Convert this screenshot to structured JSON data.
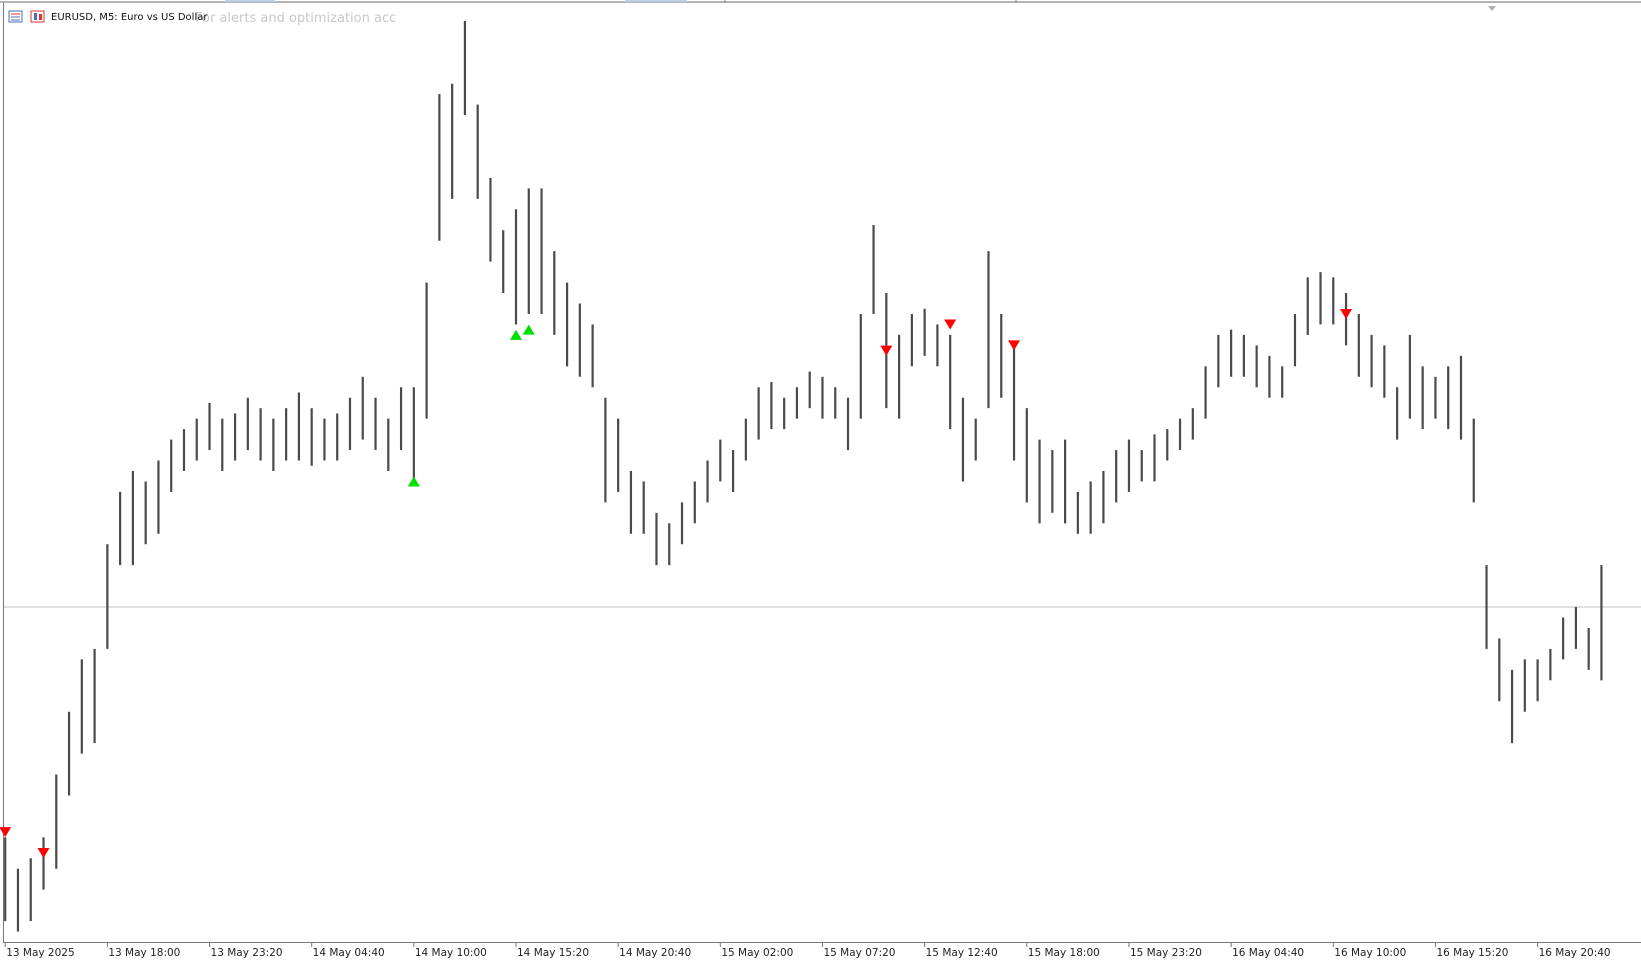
{
  "chart_data": {
    "type": "range",
    "title": "EURUSD, M5: Euro vs US Dollar",
    "subtitle": "For alerts and optimization acc",
    "color": "#4a4a4a",
    "ylim": [
      1.1089,
      1.1268
    ],
    "current_price": 1.1153,
    "categories": [
      "13 May 2025",
      null,
      null,
      null,
      null,
      null,
      null,
      null,
      "13 May 18:00",
      null,
      null,
      null,
      null,
      null,
      null,
      null,
      "13 May 23:20",
      null,
      null,
      null,
      null,
      null,
      null,
      null,
      "14 May 04:40",
      null,
      null,
      null,
      null,
      null,
      null,
      null,
      "14 May 10:00",
      null,
      null,
      null,
      null,
      null,
      null,
      null,
      "14 May 15:20",
      null,
      null,
      null,
      null,
      null,
      null,
      null,
      "14 May 20:40",
      null,
      null,
      null,
      null,
      null,
      null,
      null,
      "15 May 02:00",
      null,
      null,
      null,
      null,
      null,
      null,
      null,
      "15 May 07:20",
      null,
      null,
      null,
      null,
      null,
      null,
      null,
      "15 May 12:40",
      null,
      null,
      null,
      null,
      null,
      null,
      null,
      "15 May 18:00",
      null,
      null,
      null,
      null,
      null,
      null,
      null,
      "15 May 23:20",
      null,
      null,
      null,
      null,
      null,
      null,
      null,
      "16 May 04:40",
      null,
      null,
      null,
      null,
      null,
      null,
      null,
      "16 May 10:00",
      null,
      null,
      null,
      null,
      null,
      null,
      null,
      "16 May 15:20",
      null,
      null,
      null,
      null,
      null,
      null,
      null,
      "16 May 20:40",
      null,
      null,
      null,
      null,
      null
    ],
    "high": [
      1.1109,
      1.1103,
      1.1105,
      1.1109,
      1.1121,
      1.1133,
      1.1143,
      1.1145,
      1.1165,
      1.1175,
      1.1179,
      1.1177,
      1.1181,
      1.1185,
      1.1187,
      1.1189,
      1.1192,
      1.1189,
      1.119,
      1.1193,
      1.1191,
      1.1189,
      1.1191,
      1.1194,
      1.1191,
      1.1189,
      1.119,
      1.1193,
      1.1197,
      1.1193,
      1.1189,
      1.1195,
      1.1195,
      1.1215,
      1.1251,
      1.1253,
      1.1265,
      1.1249,
      1.1235,
      1.1225,
      1.1229,
      1.1233,
      1.1233,
      1.1221,
      1.1215,
      1.1211,
      1.1207,
      1.1193,
      1.1189,
      1.1179,
      1.1177,
      1.1171,
      1.1169,
      1.1173,
      1.1177,
      1.1181,
      1.1185,
      1.1183,
      1.1189,
      1.1195,
      1.1196,
      1.1193,
      1.1195,
      1.1198,
      1.1197,
      1.1195,
      1.1193,
      1.1209,
      1.1226,
      1.1213,
      1.1205,
      1.1209,
      1.121,
      1.1207,
      1.1205,
      1.1193,
      1.1189,
      1.1221,
      1.1209,
      1.1203,
      1.1191,
      1.1185,
      1.1183,
      1.1185,
      1.1175,
      1.1177,
      1.1179,
      1.1183,
      1.1185,
      1.1183,
      1.1186,
      1.1187,
      1.1189,
      1.1191,
      1.1199,
      1.1205,
      1.1206,
      1.1205,
      1.1203,
      1.1201,
      1.1199,
      1.1209,
      1.1216,
      1.1217,
      1.1216,
      1.1213,
      1.1209,
      1.1205,
      1.1203,
      1.1195,
      1.1205,
      1.1199,
      1.1197,
      1.1199,
      1.1201,
      1.1189,
      1.1161,
      1.1147,
      1.1141,
      1.1143,
      1.1143,
      1.1145,
      1.1151,
      1.1153,
      1.1149,
      1.1161
    ],
    "low": [
      1.1093,
      1.1091,
      1.1093,
      1.1099,
      1.1103,
      1.1117,
      1.1125,
      1.1127,
      1.1145,
      1.1161,
      1.1161,
      1.1165,
      1.1167,
      1.1175,
      1.1179,
      1.1181,
      1.1183,
      1.1179,
      1.1181,
      1.1183,
      1.1181,
      1.1179,
      1.1181,
      1.1181,
      1.118,
      1.1181,
      1.1181,
      1.1183,
      1.1185,
      1.1183,
      1.1179,
      1.1183,
      1.1177,
      1.1189,
      1.1223,
      1.1231,
      1.1247,
      1.1231,
      1.1219,
      1.1213,
      1.1207,
      1.1209,
      1.1209,
      1.1205,
      1.1199,
      1.1197,
      1.1195,
      1.1173,
      1.1175,
      1.1167,
      1.1167,
      1.1161,
      1.1161,
      1.1165,
      1.1169,
      1.1173,
      1.1177,
      1.1175,
      1.1181,
      1.1185,
      1.1187,
      1.1187,
      1.1189,
      1.1191,
      1.1189,
      1.1189,
      1.1183,
      1.1189,
      1.1209,
      1.1191,
      1.1189,
      1.1199,
      1.1201,
      1.1199,
      1.1187,
      1.1177,
      1.1181,
      1.1191,
      1.1193,
      1.1181,
      1.1173,
      1.1169,
      1.1171,
      1.1169,
      1.1167,
      1.1167,
      1.1169,
      1.1173,
      1.1175,
      1.1177,
      1.1177,
      1.1181,
      1.1183,
      1.1185,
      1.1189,
      1.1195,
      1.1197,
      1.1197,
      1.1195,
      1.1193,
      1.1193,
      1.1199,
      1.1205,
      1.1207,
      1.1207,
      1.1203,
      1.1197,
      1.1195,
      1.1193,
      1.1185,
      1.1189,
      1.1187,
      1.1189,
      1.1187,
      1.1185,
      1.1173,
      1.1145,
      1.1135,
      1.1127,
      1.1133,
      1.1135,
      1.1139,
      1.1143,
      1.1145,
      1.1141,
      1.1139
    ],
    "buy_signals": {
      "color": "#00e000",
      "x": [
        32,
        40,
        41
      ],
      "values": [
        1.1177,
        1.1205,
        1.1206
      ]
    },
    "sell_signals": {
      "color": "#ff0000",
      "x": [
        0,
        3,
        69,
        74,
        79,
        105
      ],
      "values": [
        1.111,
        1.1106,
        1.1202,
        1.1207,
        1.1203,
        1.1209
      ]
    }
  }
}
